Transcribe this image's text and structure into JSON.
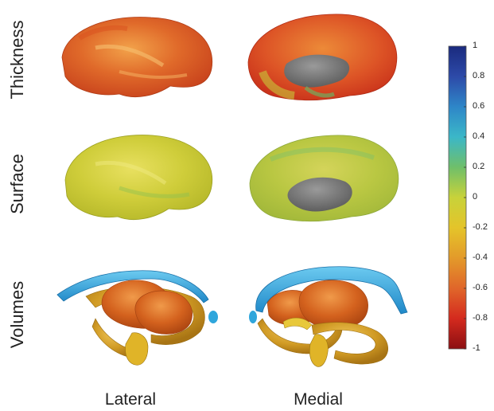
{
  "rows": {
    "thickness": "Thickness",
    "surface": "Surface",
    "volumes": "Volumes"
  },
  "columns": {
    "lateral": "Lateral",
    "medial": "Medial"
  },
  "colorbar": {
    "ticks": [
      "1",
      "0.8",
      "0.6",
      "0.4",
      "0.2",
      "0",
      "-0.2",
      "-0.4",
      "-0.6",
      "-0.8",
      "-1"
    ],
    "range": [
      -1,
      1
    ],
    "colormap": [
      "#8b0f12",
      "#d42a1e",
      "#e0662a",
      "#e39a2a",
      "#e4c42a",
      "#c8d23a",
      "#6fbf6a",
      "#3bb7c8",
      "#2e86c8",
      "#2d4aa8",
      "#1a2a7e"
    ]
  },
  "colors": {
    "thickness_lateral": "#e0662a",
    "thickness_medial": "#e05a28",
    "surface_lateral": "#c8c838",
    "surface_medial": "#b8c840",
    "volumes_blue": "#2fa6dc",
    "volumes_orange": "#d8641e",
    "volumes_gold": "#d09a24",
    "medial_wall": "#6f6f6f"
  }
}
